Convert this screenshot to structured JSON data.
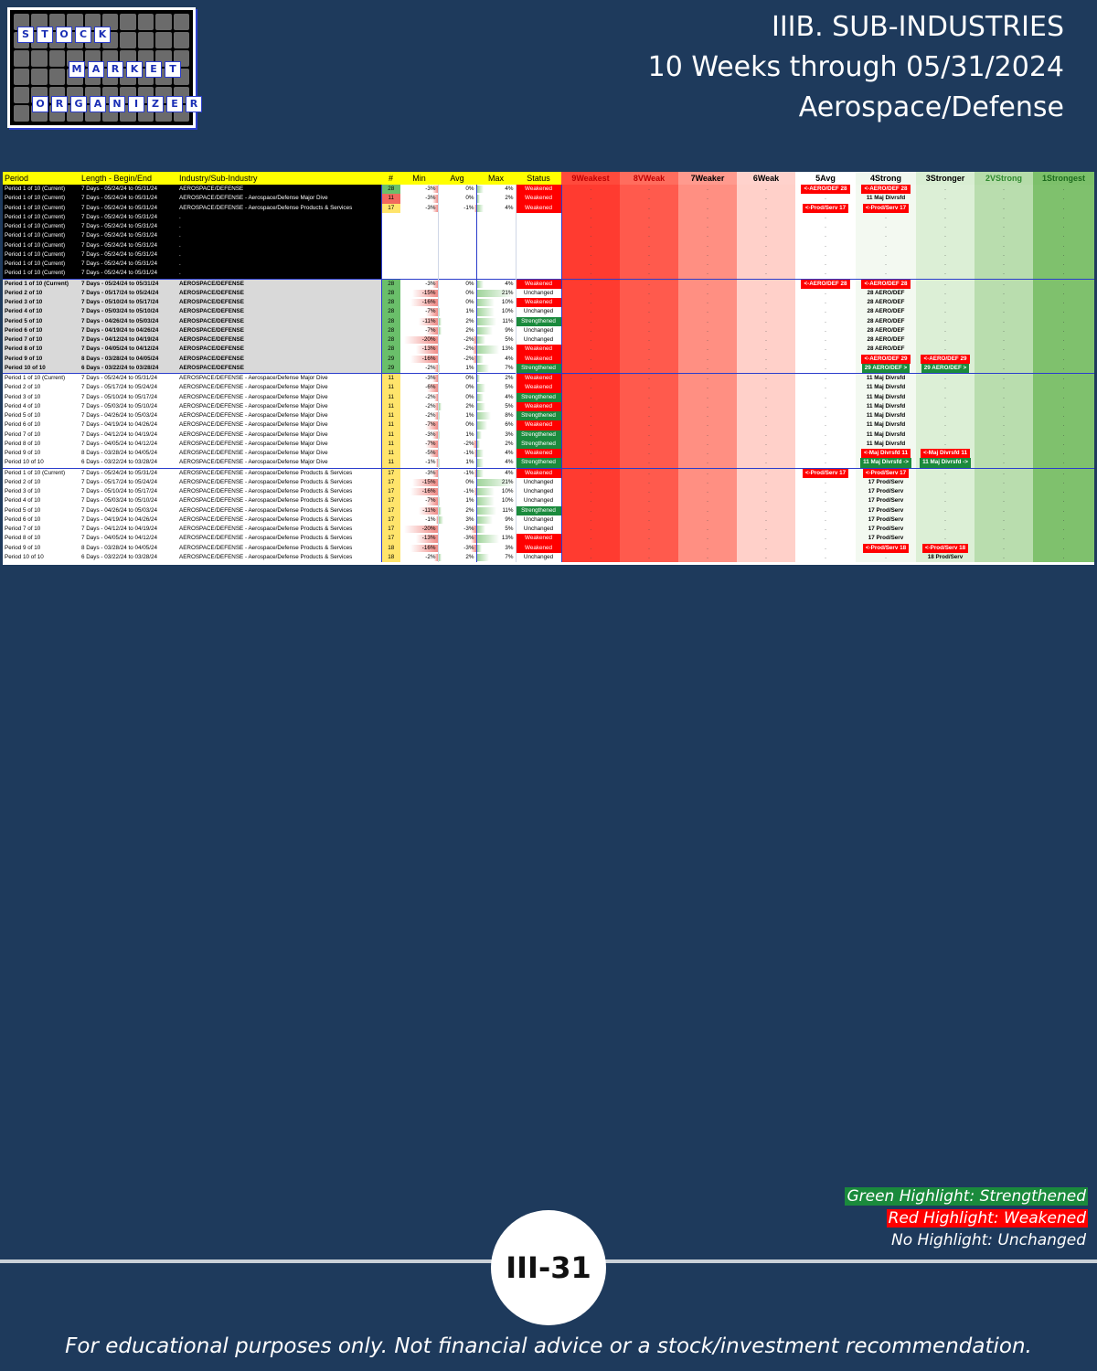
{
  "logo": {
    "word1": [
      "S",
      "T",
      "O",
      "C",
      "K"
    ],
    "word2": [
      "M",
      "A",
      "R",
      "K",
      "E",
      "T"
    ],
    "word3": [
      "O",
      "R",
      "G",
      "A",
      "N",
      "I",
      "Z",
      "E",
      "R"
    ]
  },
  "header": {
    "line1": "IIIB. SUB-INDUSTRIES",
    "line2": "10 Weeks through 05/31/2024",
    "line3": "Aerospace/Defense"
  },
  "table": {
    "columns": {
      "period": "Period",
      "length": "Length - Begin/End",
      "industry": "Industry/Sub-Industry",
      "count": "#",
      "min": "Min",
      "avg": "Avg",
      "max": "Max",
      "status": "Status",
      "bands": [
        "9Weakest",
        "8VWeak",
        "7Weaker",
        "6Weak",
        "5Avg",
        "4Strong",
        "3Stronger",
        "2VStrong",
        "1Strongest"
      ]
    },
    "rows": [
      {
        "style": "dark",
        "period": "Period 1 of 10 (Current)",
        "length": "7 Days - 05/24/24 to 05/31/24",
        "industry": "AEROSPACE/DEFENSE",
        "count": "28",
        "count_color": "g",
        "min": "-3%",
        "min_v": -3,
        "avg": "0%",
        "avg_v": 0,
        "max": "4%",
        "max_v": 4,
        "status": "Weakened",
        "b5": {
          "t": "<-AERO/DEF 28",
          "c": "red"
        },
        "b4": {
          "t": "<-AERO/DEF 28",
          "c": "red"
        }
      },
      {
        "style": "dark",
        "period": "Period 1 of 10 (Current)",
        "length": "7 Days - 05/24/24 to 05/31/24",
        "industry": "AEROSPACE/DEFENSE - Aerospace/Defense Major Dive",
        "count": "11",
        "count_color": "r",
        "min": "-3%",
        "min_v": -3,
        "avg": "0%",
        "avg_v": 0,
        "max": "2%",
        "max_v": 2,
        "status": "Weakened",
        "b4": {
          "t": "11 Maj Divrsfd",
          "c": "plain"
        }
      },
      {
        "style": "dark",
        "period": "Period 1 of 10 (Current)",
        "length": "7 Days - 05/24/24 to 05/31/24",
        "industry": "AEROSPACE/DEFENSE - Aerospace/Defense Products & Services",
        "count": "17",
        "count_color": "y",
        "min": "-3%",
        "min_v": -3,
        "avg": "-1%",
        "avg_v": -1,
        "max": "4%",
        "max_v": 4,
        "status": "Weakened",
        "b5": {
          "t": "<-Prod/Serv 17",
          "c": "red"
        },
        "b4": {
          "t": "<-Prod/Serv 17",
          "c": "red"
        }
      },
      {
        "style": "dark",
        "period": "Period 1 of 10 (Current)",
        "length": "7 Days - 05/24/24 to 05/31/24",
        "industry": ".",
        "count": "",
        "min": "",
        "avg": "",
        "max": "",
        "status": ""
      },
      {
        "style": "dark",
        "period": "Period 1 of 10 (Current)",
        "length": "7 Days - 05/24/24 to 05/31/24",
        "industry": ".",
        "count": "",
        "min": "",
        "avg": "",
        "max": "",
        "status": ""
      },
      {
        "style": "dark",
        "period": "Period 1 of 10 (Current)",
        "length": "7 Days - 05/24/24 to 05/31/24",
        "industry": ".",
        "count": "",
        "min": "",
        "avg": "",
        "max": "",
        "status": ""
      },
      {
        "style": "dark",
        "period": "Period 1 of 10 (Current)",
        "length": "7 Days - 05/24/24 to 05/31/24",
        "industry": ".",
        "count": "",
        "min": "",
        "avg": "",
        "max": "",
        "status": ""
      },
      {
        "style": "dark",
        "period": "Period 1 of 10 (Current)",
        "length": "7 Days - 05/24/24 to 05/31/24",
        "industry": ".",
        "count": "",
        "min": "",
        "avg": "",
        "max": "",
        "status": ""
      },
      {
        "style": "dark",
        "period": "Period 1 of 10 (Current)",
        "length": "7 Days - 05/24/24 to 05/31/24",
        "industry": ".",
        "count": "",
        "min": "",
        "avg": "",
        "max": "",
        "status": ""
      },
      {
        "style": "dark",
        "period": "Period 1 of 10 (Current)",
        "length": "7 Days - 05/24/24 to 05/31/24",
        "industry": ".",
        "count": "",
        "min": "",
        "avg": "",
        "max": "",
        "status": ""
      },
      {
        "style": "grey",
        "sec": true,
        "period": "Period 1 of 10 (Current)",
        "length": "7 Days - 05/24/24 to 05/31/24",
        "industry": "AEROSPACE/DEFENSE",
        "count": "28",
        "count_color": "g",
        "min": "-3%",
        "min_v": -3,
        "avg": "0%",
        "avg_v": 0,
        "max": "4%",
        "max_v": 4,
        "status": "Weakened",
        "b5": {
          "t": "<-AERO/DEF 28",
          "c": "red"
        },
        "b4": {
          "t": "<-AERO/DEF 28",
          "c": "red"
        }
      },
      {
        "style": "grey",
        "period": "Period 2 of 10",
        "length": "7 Days - 05/17/24 to 05/24/24",
        "industry": "AEROSPACE/DEFENSE",
        "count": "28",
        "count_color": "g",
        "min": "-15%",
        "min_v": -15,
        "avg": "0%",
        "avg_v": 0,
        "max": "21%",
        "max_v": 21,
        "status": "Unchanged",
        "b4": {
          "t": "28 AERO/DEF",
          "c": "plain"
        }
      },
      {
        "style": "grey",
        "period": "Period 3 of 10",
        "length": "7 Days - 05/10/24 to 05/17/24",
        "industry": "AEROSPACE/DEFENSE",
        "count": "28",
        "count_color": "g",
        "min": "-16%",
        "min_v": -16,
        "avg": "0%",
        "avg_v": 0,
        "max": "10%",
        "max_v": 10,
        "status": "Weakened",
        "b4": {
          "t": "28 AERO/DEF",
          "c": "plain"
        }
      },
      {
        "style": "grey",
        "period": "Period 4 of 10",
        "length": "7 Days - 05/03/24 to 05/10/24",
        "industry": "AEROSPACE/DEFENSE",
        "count": "28",
        "count_color": "g",
        "min": "-7%",
        "min_v": -7,
        "avg": "1%",
        "avg_v": 1,
        "max": "10%",
        "max_v": 10,
        "status": "Unchanged",
        "b4": {
          "t": "28 AERO/DEF",
          "c": "plain"
        }
      },
      {
        "style": "grey",
        "period": "Period 5 of 10",
        "length": "7 Days - 04/26/24 to 05/03/24",
        "industry": "AEROSPACE/DEFENSE",
        "count": "28",
        "count_color": "g",
        "min": "-11%",
        "min_v": -11,
        "avg": "2%",
        "avg_v": 2,
        "max": "11%",
        "max_v": 11,
        "status": "Strengthened",
        "b4": {
          "t": "28 AERO/DEF",
          "c": "plain"
        }
      },
      {
        "style": "grey",
        "period": "Period 6 of 10",
        "length": "7 Days - 04/19/24 to 04/26/24",
        "industry": "AEROSPACE/DEFENSE",
        "count": "28",
        "count_color": "g",
        "min": "-7%",
        "min_v": -7,
        "avg": "2%",
        "avg_v": 2,
        "max": "9%",
        "max_v": 9,
        "status": "Unchanged",
        "b4": {
          "t": "28 AERO/DEF",
          "c": "plain"
        }
      },
      {
        "style": "grey",
        "period": "Period 7 of 10",
        "length": "7 Days - 04/12/24 to 04/19/24",
        "industry": "AEROSPACE/DEFENSE",
        "count": "28",
        "count_color": "g",
        "min": "-20%",
        "min_v": -20,
        "avg": "-2%",
        "avg_v": -2,
        "max": "5%",
        "max_v": 5,
        "status": "Unchanged",
        "b4": {
          "t": "28 AERO/DEF",
          "c": "plain"
        }
      },
      {
        "style": "grey",
        "period": "Period 8 of 10",
        "length": "7 Days - 04/05/24 to 04/12/24",
        "industry": "AEROSPACE/DEFENSE",
        "count": "28",
        "count_color": "g",
        "min": "-13%",
        "min_v": -13,
        "avg": "-2%",
        "avg_v": -2,
        "max": "13%",
        "max_v": 13,
        "status": "Weakened",
        "b4": {
          "t": "28 AERO/DEF",
          "c": "plain"
        }
      },
      {
        "style": "grey",
        "period": "Period 9 of 10",
        "length": "8 Days - 03/28/24 to 04/05/24",
        "industry": "AEROSPACE/DEFENSE",
        "count": "29",
        "count_color": "g",
        "min": "-16%",
        "min_v": -16,
        "avg": "-2%",
        "avg_v": -2,
        "max": "4%",
        "max_v": 4,
        "status": "Weakened",
        "b4": {
          "t": "<-AERO/DEF 29",
          "c": "red"
        },
        "b3": {
          "t": "<-AERO/DEF 29",
          "c": "red"
        }
      },
      {
        "style": "grey",
        "period": "Period 10 of 10",
        "length": "6 Days - 03/22/24 to 03/28/24",
        "industry": "AEROSPACE/DEFENSE",
        "count": "29",
        "count_color": "g",
        "min": "-2%",
        "min_v": -2,
        "avg": "1%",
        "avg_v": 1,
        "max": "7%",
        "max_v": 7,
        "status": "Strengthened",
        "b4": {
          "t": "29 AERO/DEF >",
          "c": "grn"
        },
        "b3": {
          "t": "29 AERO/DEF >",
          "c": "grn"
        }
      },
      {
        "style": "white",
        "sec": true,
        "period": "Period 1 of 10 (Current)",
        "length": "7 Days - 05/24/24 to 05/31/24",
        "industry": "AEROSPACE/DEFENSE - Aerospace/Defense Major Dive",
        "count": "11",
        "count_color": "y",
        "min": "-3%",
        "min_v": -3,
        "avg": "0%",
        "avg_v": 0,
        "max": "2%",
        "max_v": 2,
        "status": "Weakened",
        "b4": {
          "t": "11 Maj Divrsfd",
          "c": "plain"
        }
      },
      {
        "style": "white",
        "period": "Period 2 of 10",
        "length": "7 Days - 05/17/24 to 05/24/24",
        "industry": "AEROSPACE/DEFENSE - Aerospace/Defense Major Dive",
        "count": "11",
        "count_color": "y",
        "min": "-6%",
        "min_v": -6,
        "avg": "0%",
        "avg_v": 0,
        "max": "5%",
        "max_v": 5,
        "status": "Weakened",
        "b4": {
          "t": "11 Maj Divrsfd",
          "c": "plain"
        }
      },
      {
        "style": "white",
        "period": "Period 3 of 10",
        "length": "7 Days - 05/10/24 to 05/17/24",
        "industry": "AEROSPACE/DEFENSE - Aerospace/Defense Major Dive",
        "count": "11",
        "count_color": "y",
        "min": "-2%",
        "min_v": -2,
        "avg": "0%",
        "avg_v": 0,
        "max": "4%",
        "max_v": 4,
        "status": "Strengthened",
        "b4": {
          "t": "11 Maj Divrsfd",
          "c": "plain"
        }
      },
      {
        "style": "white",
        "period": "Period 4 of 10",
        "length": "7 Days - 05/03/24 to 05/10/24",
        "industry": "AEROSPACE/DEFENSE - Aerospace/Defense Major Dive",
        "count": "11",
        "count_color": "y",
        "min": "-2%",
        "min_v": -2,
        "avg": "2%",
        "avg_v": 2,
        "max": "5%",
        "max_v": 5,
        "status": "Weakened",
        "b4": {
          "t": "11 Maj Divrsfd",
          "c": "plain"
        }
      },
      {
        "style": "white",
        "period": "Period 5 of 10",
        "length": "7 Days - 04/26/24 to 05/03/24",
        "industry": "AEROSPACE/DEFENSE - Aerospace/Defense Major Dive",
        "count": "11",
        "count_color": "y",
        "min": "-2%",
        "min_v": -2,
        "avg": "1%",
        "avg_v": 1,
        "max": "8%",
        "max_v": 8,
        "status": "Strengthened",
        "b4": {
          "t": "11 Maj Divrsfd",
          "c": "plain"
        }
      },
      {
        "style": "white",
        "period": "Period 6 of 10",
        "length": "7 Days - 04/19/24 to 04/26/24",
        "industry": "AEROSPACE/DEFENSE - Aerospace/Defense Major Dive",
        "count": "11",
        "count_color": "y",
        "min": "-7%",
        "min_v": -7,
        "avg": "0%",
        "avg_v": 0,
        "max": "6%",
        "max_v": 6,
        "status": "Weakened",
        "b4": {
          "t": "11 Maj Divrsfd",
          "c": "plain"
        }
      },
      {
        "style": "white",
        "period": "Period 7 of 10",
        "length": "7 Days - 04/12/24 to 04/19/24",
        "industry": "AEROSPACE/DEFENSE - Aerospace/Defense Major Dive",
        "count": "11",
        "count_color": "y",
        "min": "-3%",
        "min_v": -3,
        "avg": "1%",
        "avg_v": 1,
        "max": "3%",
        "max_v": 3,
        "status": "Strengthened",
        "b4": {
          "t": "11 Maj Divrsfd",
          "c": "plain"
        }
      },
      {
        "style": "white",
        "period": "Period 8 of 10",
        "length": "7 Days - 04/05/24 to 04/12/24",
        "industry": "AEROSPACE/DEFENSE - Aerospace/Defense Major Dive",
        "count": "11",
        "count_color": "y",
        "min": "-7%",
        "min_v": -7,
        "avg": "-2%",
        "avg_v": -2,
        "max": "2%",
        "max_v": 2,
        "status": "Strengthened",
        "b4": {
          "t": "11 Maj Divrsfd",
          "c": "plain"
        }
      },
      {
        "style": "white",
        "period": "Period 9 of 10",
        "length": "8 Days - 03/28/24 to 04/05/24",
        "industry": "AEROSPACE/DEFENSE - Aerospace/Defense Major Dive",
        "count": "11",
        "count_color": "y",
        "min": "-5%",
        "min_v": -5,
        "avg": "-1%",
        "avg_v": -1,
        "max": "4%",
        "max_v": 4,
        "status": "Weakened",
        "b4": {
          "t": "<-Maj Divrsfd 11",
          "c": "red"
        },
        "b3": {
          "t": "<-Maj Divrsfd 11",
          "c": "red"
        }
      },
      {
        "style": "white",
        "period": "Period 10 of 10",
        "length": "6 Days - 03/22/24 to 03/28/24",
        "industry": "AEROSPACE/DEFENSE - Aerospace/Defense Major Dive",
        "count": "11",
        "count_color": "y",
        "min": "-1%",
        "min_v": -1,
        "avg": "1%",
        "avg_v": 1,
        "max": "4%",
        "max_v": 4,
        "status": "Strengthened",
        "b4": {
          "t": "11 Maj Divrsfd ->",
          "c": "grn"
        },
        "b3": {
          "t": "11 Maj Divrsfd ->",
          "c": "grn"
        }
      },
      {
        "style": "white",
        "sec": true,
        "period": "Period 1 of 10 (Current)",
        "length": "7 Days - 05/24/24 to 05/31/24",
        "industry": "AEROSPACE/DEFENSE - Aerospace/Defense Products & Services",
        "count": "17",
        "count_color": "y",
        "min": "-3%",
        "min_v": -3,
        "avg": "-1%",
        "avg_v": -1,
        "max": "4%",
        "max_v": 4,
        "status": "Weakened",
        "b5": {
          "t": "<-Prod/Serv 17",
          "c": "red"
        },
        "b4": {
          "t": "<-Prod/Serv 17",
          "c": "red"
        }
      },
      {
        "style": "white",
        "period": "Period 2 of 10",
        "length": "7 Days - 05/17/24 to 05/24/24",
        "industry": "AEROSPACE/DEFENSE - Aerospace/Defense Products & Services",
        "count": "17",
        "count_color": "y",
        "min": "-15%",
        "min_v": -15,
        "avg": "0%",
        "avg_v": 0,
        "max": "21%",
        "max_v": 21,
        "status": "Unchanged",
        "b4": {
          "t": "17 Prod/Serv",
          "c": "plain"
        }
      },
      {
        "style": "white",
        "period": "Period 3 of 10",
        "length": "7 Days - 05/10/24 to 05/17/24",
        "industry": "AEROSPACE/DEFENSE - Aerospace/Defense Products & Services",
        "count": "17",
        "count_color": "y",
        "min": "-16%",
        "min_v": -16,
        "avg": "-1%",
        "avg_v": -1,
        "max": "10%",
        "max_v": 10,
        "status": "Unchanged",
        "b4": {
          "t": "17 Prod/Serv",
          "c": "plain"
        }
      },
      {
        "style": "white",
        "period": "Period 4 of 10",
        "length": "7 Days - 05/03/24 to 05/10/24",
        "industry": "AEROSPACE/DEFENSE - Aerospace/Defense Products & Services",
        "count": "17",
        "count_color": "y",
        "min": "-7%",
        "min_v": -7,
        "avg": "1%",
        "avg_v": 1,
        "max": "10%",
        "max_v": 10,
        "status": "Unchanged",
        "b4": {
          "t": "17 Prod/Serv",
          "c": "plain"
        }
      },
      {
        "style": "white",
        "period": "Period 5 of 10",
        "length": "7 Days - 04/26/24 to 05/03/24",
        "industry": "AEROSPACE/DEFENSE - Aerospace/Defense Products & Services",
        "count": "17",
        "count_color": "y",
        "min": "-11%",
        "min_v": -11,
        "avg": "2%",
        "avg_v": 2,
        "max": "11%",
        "max_v": 11,
        "status": "Strengthened",
        "b4": {
          "t": "17 Prod/Serv",
          "c": "plain"
        }
      },
      {
        "style": "white",
        "period": "Period 6 of 10",
        "length": "7 Days - 04/19/24 to 04/26/24",
        "industry": "AEROSPACE/DEFENSE - Aerospace/Defense Products & Services",
        "count": "17",
        "count_color": "y",
        "min": "-1%",
        "min_v": -1,
        "avg": "3%",
        "avg_v": 3,
        "max": "9%",
        "max_v": 9,
        "status": "Unchanged",
        "b4": {
          "t": "17 Prod/Serv",
          "c": "plain"
        }
      },
      {
        "style": "white",
        "period": "Period 7 of 10",
        "length": "7 Days - 04/12/24 to 04/19/24",
        "industry": "AEROSPACE/DEFENSE - Aerospace/Defense Products & Services",
        "count": "17",
        "count_color": "y",
        "min": "-20%",
        "min_v": -20,
        "avg": "-3%",
        "avg_v": -3,
        "max": "5%",
        "max_v": 5,
        "status": "Unchanged",
        "b4": {
          "t": "17 Prod/Serv",
          "c": "plain"
        }
      },
      {
        "style": "white",
        "period": "Period 8 of 10",
        "length": "7 Days - 04/05/24 to 04/12/24",
        "industry": "AEROSPACE/DEFENSE - Aerospace/Defense Products & Services",
        "count": "17",
        "count_color": "y",
        "min": "-13%",
        "min_v": -13,
        "avg": "-3%",
        "avg_v": -3,
        "max": "13%",
        "max_v": 13,
        "status": "Weakened",
        "b4": {
          "t": "17 Prod/Serv",
          "c": "plain"
        }
      },
      {
        "style": "white",
        "period": "Period 9 of 10",
        "length": "8 Days - 03/28/24 to 04/05/24",
        "industry": "AEROSPACE/DEFENSE - Aerospace/Defense Products & Services",
        "count": "18",
        "count_color": "y",
        "min": "-16%",
        "min_v": -16,
        "avg": "-3%",
        "avg_v": -3,
        "max": "3%",
        "max_v": 3,
        "status": "Weakened",
        "b4": {
          "t": "<-Prod/Serv 18",
          "c": "red"
        },
        "b3": {
          "t": "<-Prod/Serv 18",
          "c": "red"
        }
      },
      {
        "style": "white",
        "period": "Period 10 of 10",
        "length": "6 Days - 03/22/24 to 03/28/24",
        "industry": "AEROSPACE/DEFENSE - Aerospace/Defense Products & Services",
        "count": "18",
        "count_color": "y",
        "min": "-2%",
        "min_v": -2,
        "avg": "2%",
        "avg_v": 2,
        "max": "7%",
        "max_v": 7,
        "status": "Unchanged",
        "b3": {
          "t": "18 Prod/Serv",
          "c": "plain"
        }
      }
    ]
  },
  "legend": {
    "green": "Green Highlight: Strengthened",
    "red": "Red Highlight: Weakened",
    "none": "No Highlight: Unchanged"
  },
  "page_number": "III-31",
  "footer": "For educational purposes only. Not financial advice or a stock/investment recommendation.",
  "colors": {
    "background": "#1e3a5c",
    "weakened": "#ff0000",
    "strengthened": "#1a8a3c",
    "header_yellow": "#ffff00"
  }
}
